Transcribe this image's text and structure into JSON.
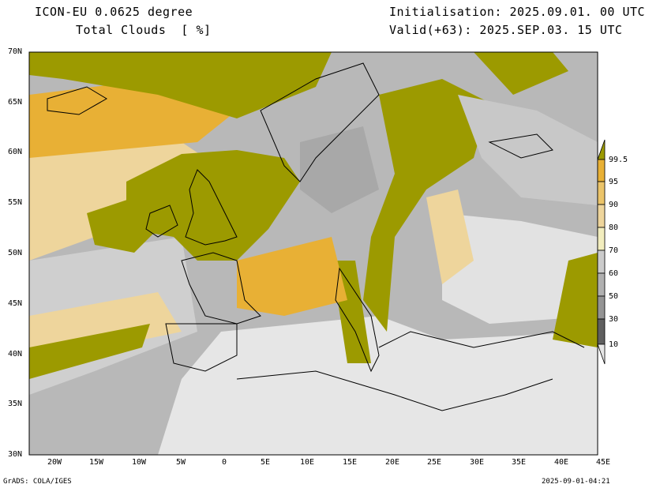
{
  "header": {
    "model": "ICON-EU 0.0625 degree",
    "variable": "Total Clouds  [ %]",
    "init": "Initialisation: 2025.09.01. 00 UTC",
    "valid": "Valid(+63): 2025.SEP.03. 15 UTC"
  },
  "lat_labels": [
    "70N",
    "65N",
    "60N",
    "55N",
    "50N",
    "45N",
    "40N",
    "35N",
    "30N"
  ],
  "lon_labels": [
    "20W",
    "15W",
    "10W",
    "5W",
    "0",
    "5E",
    "10E",
    "15E",
    "20E",
    "25E",
    "30E",
    "35E",
    "40E",
    "45E"
  ],
  "legend": {
    "labels": [
      "99.5",
      "95",
      "90",
      "80",
      "70",
      "60",
      "50",
      "30",
      "10"
    ],
    "colors": {
      "above_99_5": "#9c9a00",
      "95_99_5": "#e8b035",
      "90_95": "#ebc46a",
      "80_90": "#eed59c",
      "70_80": "#f2edbe",
      "60_70": "#cbcbcb",
      "50_60": "#b0b0b0",
      "30_50": "#949494",
      "10_30": "#5f5f5f",
      "below_10": "#e6e6e6"
    }
  },
  "footer": {
    "left": "GrADS: COLA/IGES",
    "right": "2025-09-01-04:21"
  }
}
